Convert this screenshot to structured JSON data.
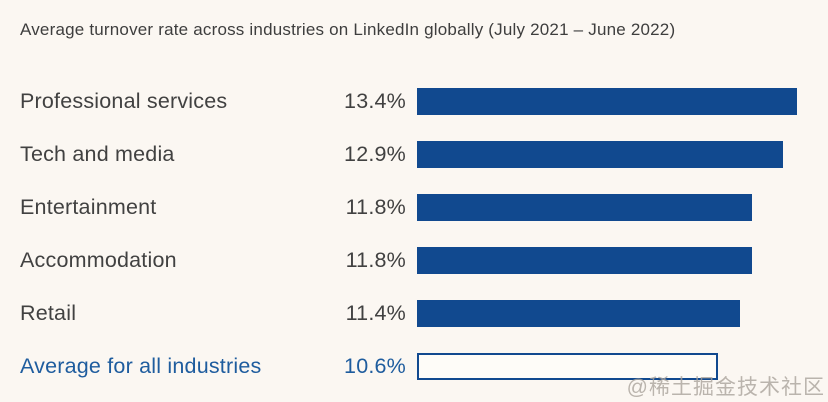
{
  "title": "Average turnover rate across industries on LinkedIn globally (July 2021 – June 2022)",
  "watermark": "@稀土掘金技术社区",
  "colors": {
    "background": "#fbf7f2",
    "bar_fill": "#11498f",
    "bar_outline": "#11498f",
    "text_dark": "#414141",
    "text_blue": "#1e5c9e",
    "watermark": "#aba49c"
  },
  "chart_data": {
    "type": "bar",
    "orientation": "horizontal",
    "title": "Average turnover rate across industries on LinkedIn globally (July 2021 – June 2022)",
    "categories": [
      "Professional services",
      "Tech and media",
      "Entertainment",
      "Accommodation",
      "Retail",
      "Average for all industries"
    ],
    "values": [
      13.4,
      12.9,
      11.8,
      11.8,
      11.4,
      10.6
    ],
    "value_labels": [
      "13.4%",
      "12.9%",
      "11.8%",
      "11.8%",
      "11.4%",
      "10.6%"
    ],
    "unit": "%",
    "xlim": [
      0,
      13.4
    ],
    "grid": false,
    "legend": "none",
    "rows": [
      {
        "label": "Professional services",
        "value": 13.4,
        "value_label": "13.4%",
        "bar_style": "filled"
      },
      {
        "label": "Tech and media",
        "value": 12.9,
        "value_label": "12.9%",
        "bar_style": "filled"
      },
      {
        "label": "Entertainment",
        "value": 11.8,
        "value_label": "11.8%",
        "bar_style": "filled"
      },
      {
        "label": "Accommodation",
        "value": 11.8,
        "value_label": "11.8%",
        "bar_style": "filled"
      },
      {
        "label": "Retail",
        "value": 11.4,
        "value_label": "11.4%",
        "bar_style": "filled"
      },
      {
        "label": "Average for all industries",
        "value": 10.6,
        "value_label": "10.6%",
        "bar_style": "outlined"
      }
    ]
  }
}
